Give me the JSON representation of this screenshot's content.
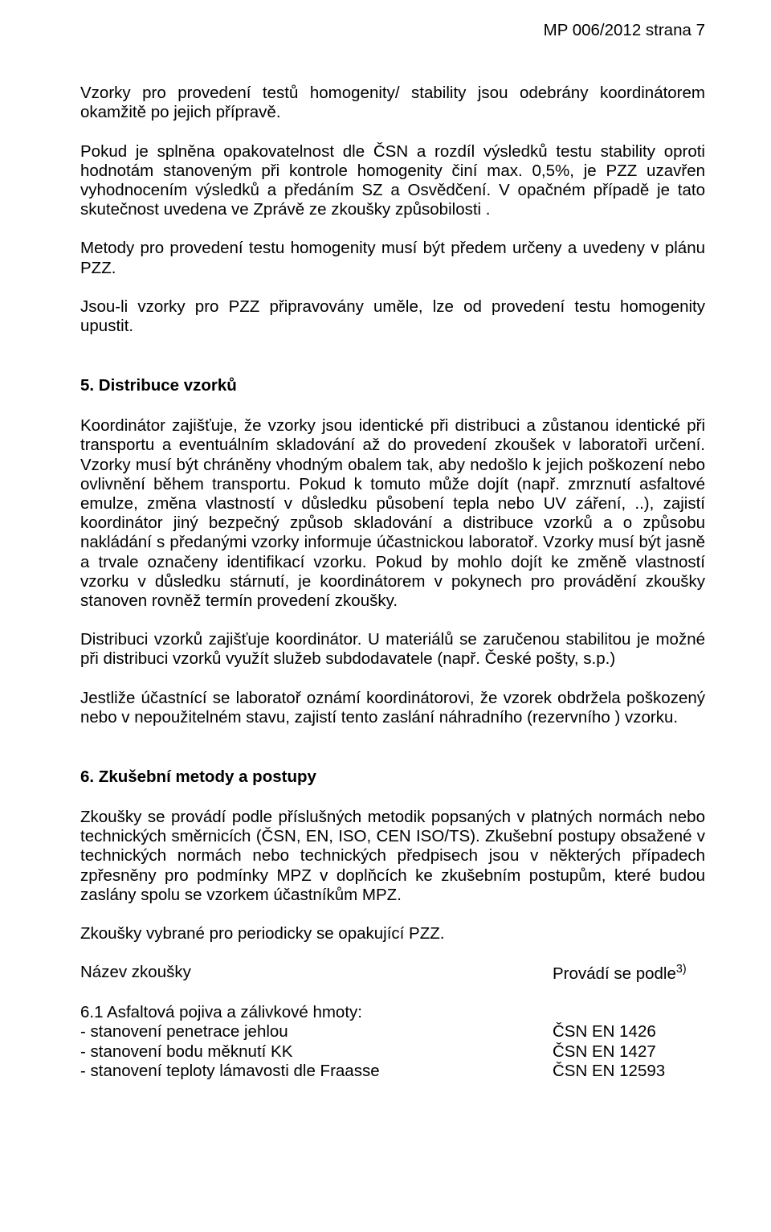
{
  "header": "MP 006/2012 strana  7",
  "p1": "Vzorky pro provedení testů homogenity/ stability jsou odebrány koordinátorem okamžitě po jejich přípravě.",
  "p2": "Pokud je splněna opakovatelnost dle ČSN a rozdíl výsledků testu stability oproti hodnotám stanoveným při kontrole homogenity činí max. 0,5%, je PZZ uzavřen vyhodnocením výsledků a předáním SZ a Osvědčení. V opačném případě je tato skutečnost uvedena ve Zprávě ze zkoušky způsobilosti .",
  "p3": "Metody pro provedení testu homogenity musí být předem určeny a uvedeny v plánu PZZ.",
  "p4": "Jsou-li vzorky pro PZZ připravovány uměle, lze od provedení testu homogenity upustit.",
  "sec5_title": "5. Distribuce vzorků",
  "sec5_p1": "Koordinátor zajišťuje, že vzorky jsou identické při distribuci a zůstanou identické při transportu a eventuálním skladování až do provedení zkoušek v laboratoři určení. Vzorky musí být chráněny vhodným obalem tak, aby nedošlo k jejich poškození nebo ovlivnění během transportu. Pokud k tomuto může dojít (např. zmrznutí asfaltové emulze, změna vlastností v důsledku působení tepla nebo UV záření, ..), zajistí koordinátor jiný bezpečný způsob skladování a distribuce vzorků a o způsobu nakládání s předanými vzorky informuje účastnickou laboratoř. Vzorky musí být jasně a trvale označeny identifikací vzorku. Pokud by mohlo dojít ke změně vlastností vzorku v důsledku stárnutí, je koordinátorem v pokynech pro provádění zkoušky stanoven rovněž termín provedení zkoušky.",
  "sec5_p2": "Distribuci vzorků zajišťuje koordinátor. U materiálů se zaručenou stabilitou je možné při distribuci vzorků využít služeb subdodavatele (např. České pošty, s.p.)",
  "sec5_p3": "Jestliže účastnící se laboratoř oznámí koordinátorovi, že vzorek obdržela poškozený nebo v nepoužitelném stavu, zajistí tento zaslání náhradního (rezervního ) vzorku.",
  "sec6_title": "6. Zkušební metody a postupy",
  "sec6_p1": "Zkoušky se provádí podle příslušných metodik popsaných v platných normách nebo technických směrnicích (ČSN, EN, ISO, CEN ISO/TS). Zkušební postupy obsažené v technických normách nebo technických předpisech jsou v některých případech zpřesněny pro podmínky MPZ v doplňcích ke zkušebním postupům, které budou zaslány spolu se vzorkem účastníkům MPZ.",
  "sec6_p2": "Zkoušky vybrané pro periodicky se opakující PZZ.",
  "table_header_left": "Název  zkoušky",
  "table_header_right": "Provádí se podle",
  "table_header_sup": "3)",
  "sub61": "6.1 Asfaltová pojiva a zálivkové hmoty:",
  "items": [
    {
      "l": "- stanovení penetrace jehlou",
      "r": "ČSN EN 1426"
    },
    {
      "l": "- stanovení bodu měknutí KK",
      "r": "ČSN EN 1427"
    },
    {
      "l": "- stanovení teploty lámavosti dle Fraasse",
      "r": "ČSN EN 12593"
    }
  ]
}
